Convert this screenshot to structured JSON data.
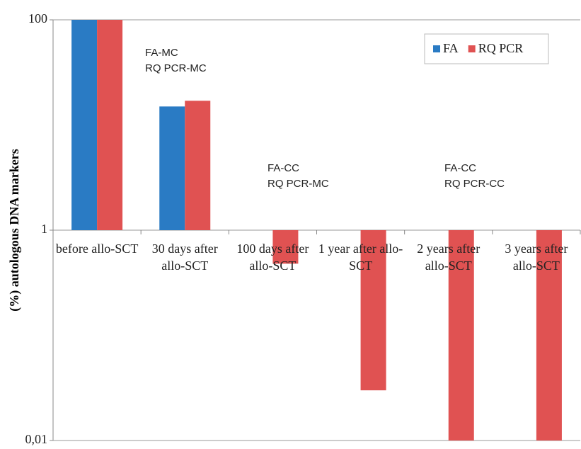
{
  "chart_data": {
    "type": "bar",
    "log_scale": true,
    "y_label": "(%) autologous DNA markers",
    "categories": [
      "before allo-SCT",
      "30 days after allo-SCT",
      "100 days after allo-SCT",
      "1 year after allo-SCT",
      "2 years after allo-SCT",
      "3 years after allo-SCT"
    ],
    "series": [
      {
        "name": "FA",
        "color": "#2a7bc4",
        "values": [
          100,
          15,
          null,
          null,
          null,
          null
        ]
      },
      {
        "name": "RQ PCR",
        "color": "#e05252",
        "values": [
          100,
          17,
          0.48,
          0.03,
          0.01,
          0.01
        ]
      }
    ],
    "ylim": [
      0.01,
      100
    ],
    "yticks": [
      100,
      1,
      {
        "value": 0.01,
        "label": "0,01"
      }
    ],
    "grid": true,
    "legend_position": "upper right",
    "annotations": [
      [
        "FA-MC",
        "RQ PCR-MC"
      ],
      [
        "FA-CC",
        "RQ PCR-MC"
      ],
      [
        "FA-CC",
        "RQ PCR-CC"
      ]
    ]
  }
}
